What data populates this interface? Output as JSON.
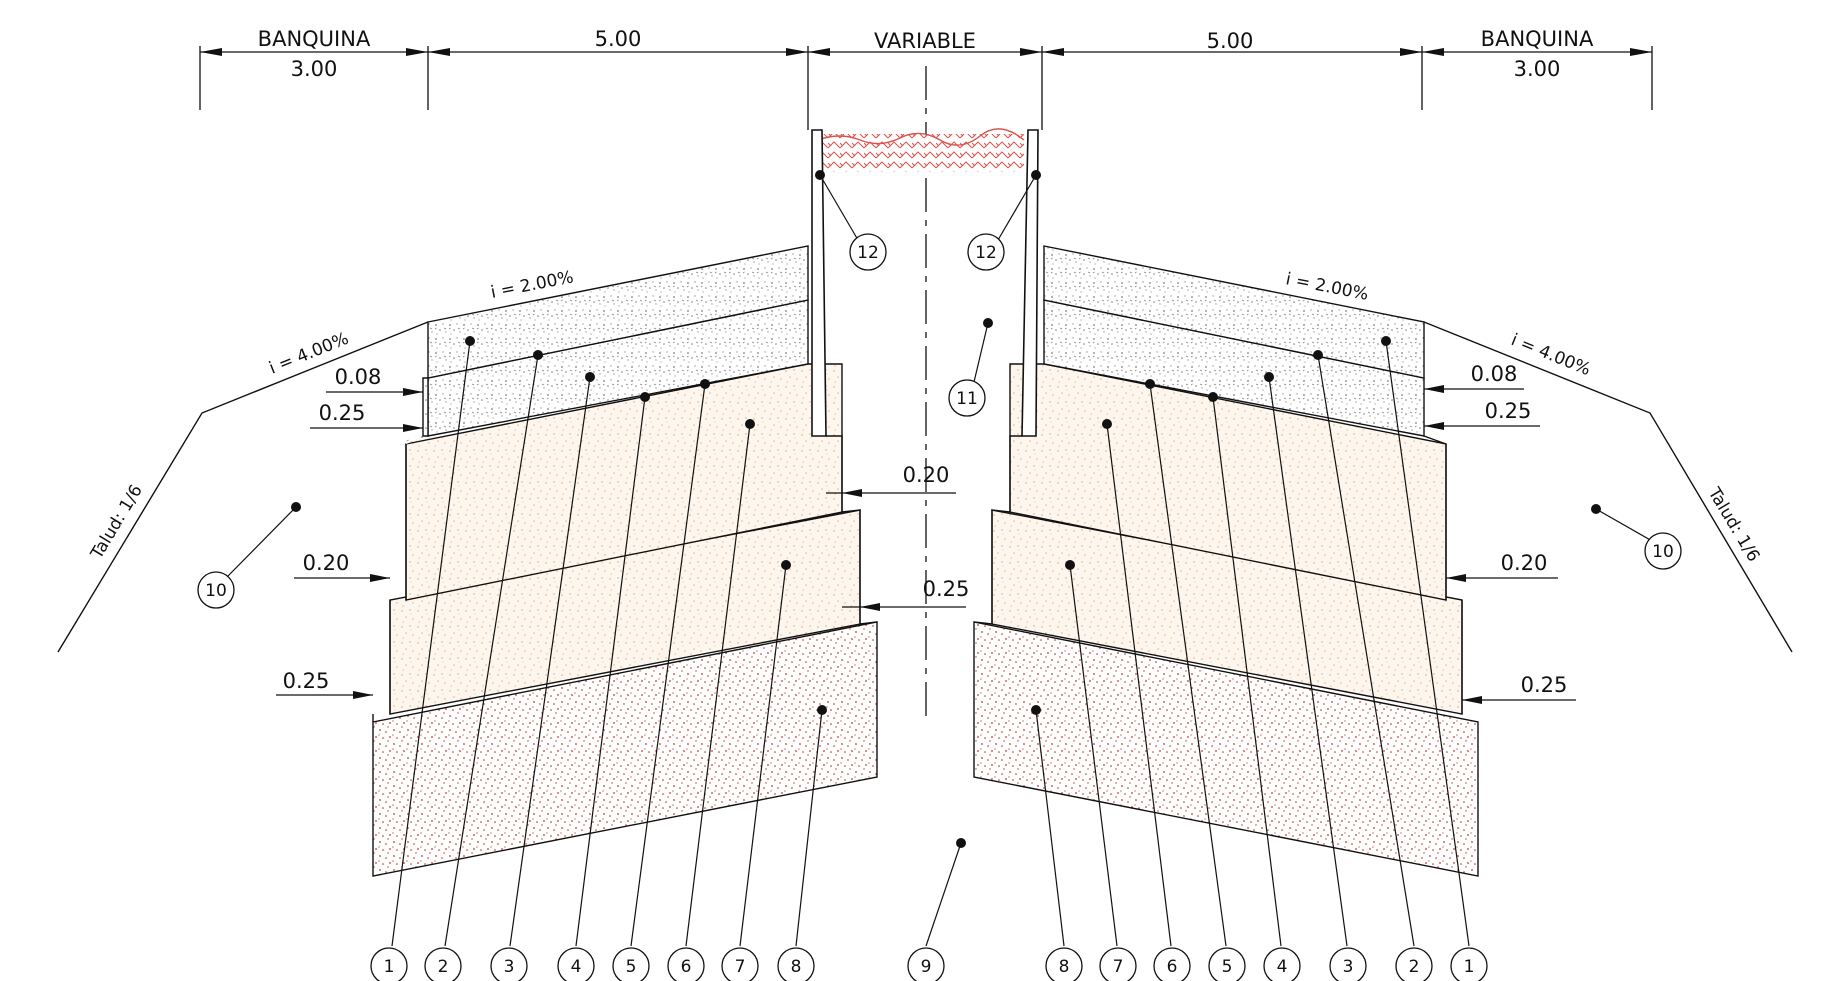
{
  "dimensions": {
    "banquina_left_label": "BANQUINA",
    "banquina_left_value": "3.00",
    "lane_left_value": "5.00",
    "median_label": "VARIABLE",
    "lane_right_value": "5.00",
    "banquina_right_label": "BANQUINA",
    "banquina_right_value": "3.00"
  },
  "slopes": {
    "lane_left": "i = 2.00%",
    "lane_right": "i = 2.00%",
    "shoulder_left": "i = 4.00%",
    "shoulder_right": "i = 4.00%",
    "talud_left": "Talud: 1/6",
    "talud_right": "Talud: 1/6"
  },
  "offsets": {
    "left_008": "0.08",
    "left_025_top": "0.25",
    "left_020": "0.20",
    "left_025_bottom": "0.25",
    "center_020": "0.20",
    "center_025": "0.25",
    "right_008": "0.08",
    "right_025_top": "0.25",
    "right_020": "0.20",
    "right_025_bottom": "0.25"
  },
  "callouts": {
    "bottom_left": [
      "1",
      "2",
      "3",
      "4",
      "5",
      "6",
      "7",
      "8"
    ],
    "bottom_center": "9",
    "bottom_right": [
      "8",
      "7",
      "6",
      "5",
      "4",
      "3",
      "2",
      "1"
    ],
    "curb_left": "12",
    "curb_right": "12",
    "median_fill": "11",
    "embankment_left": "10",
    "embankment_right": "10"
  },
  "colors": {
    "line": "#111111",
    "asphalt_speckle": "#8a8a8a",
    "base_speckle": "#e8a86a",
    "subbase_speckle": "#c0392b",
    "median_surface": "#d9534f"
  }
}
